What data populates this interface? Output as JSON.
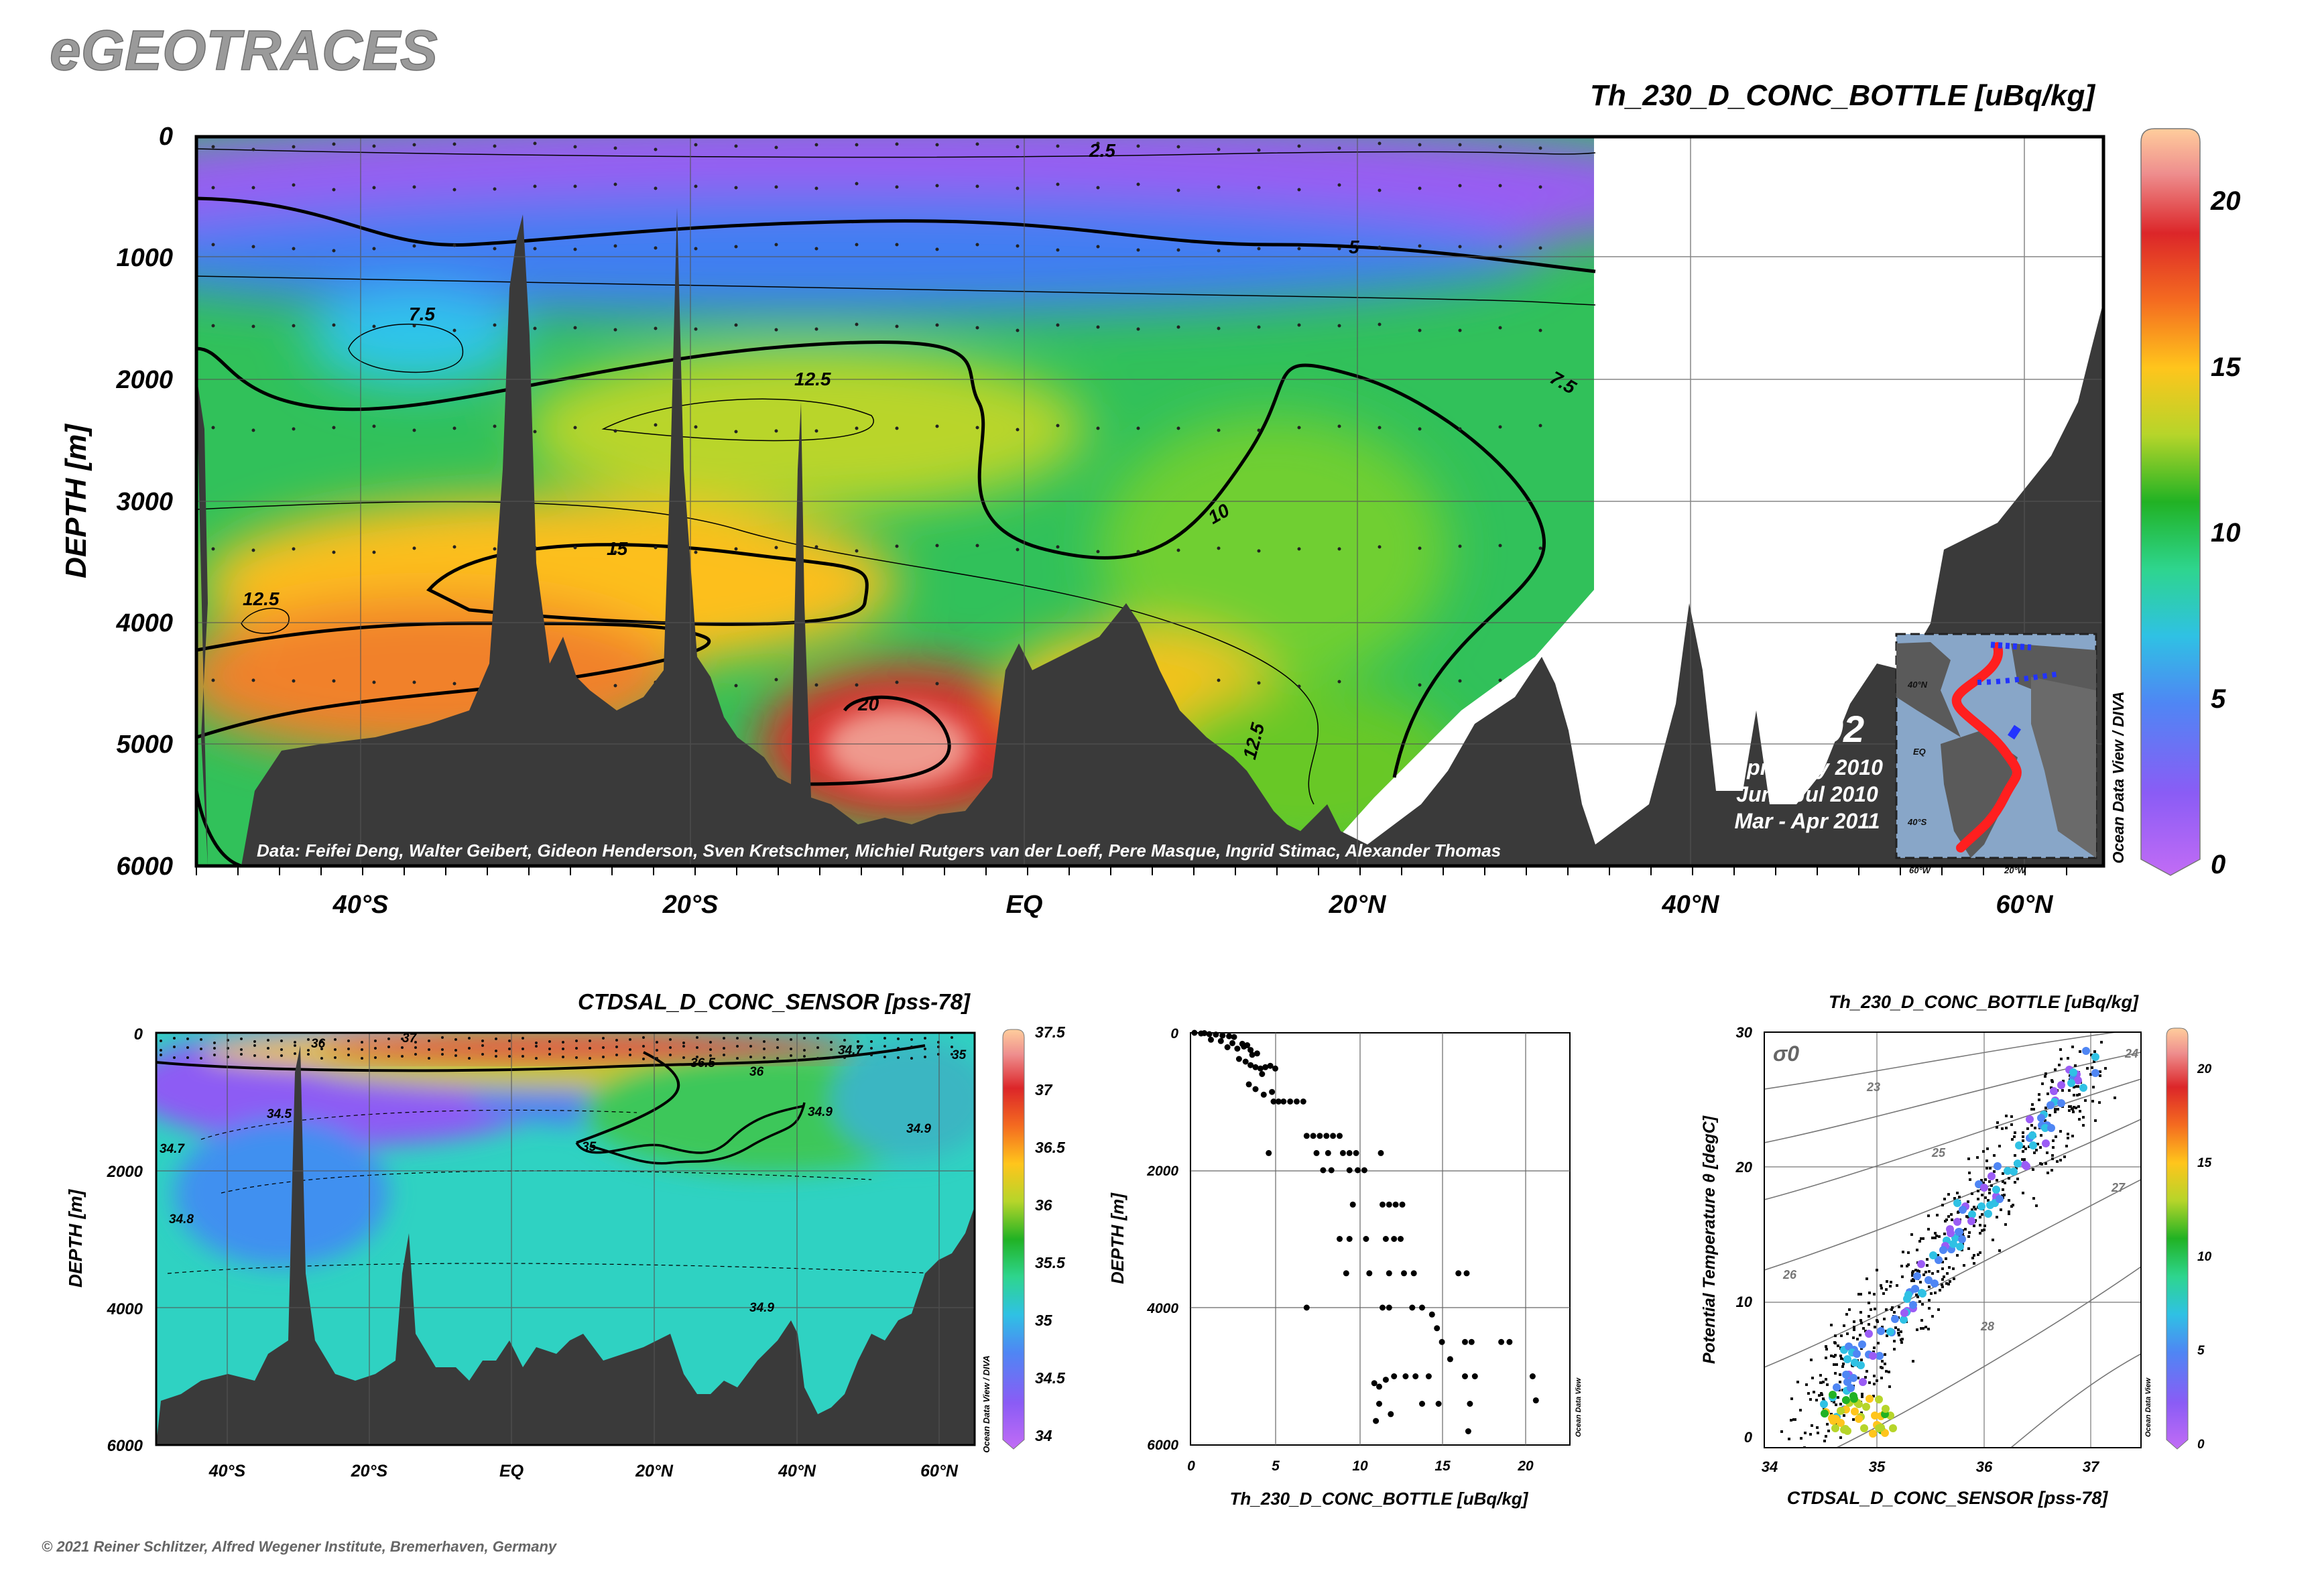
{
  "header": {
    "brand": "eGEOTRACES",
    "copyright": "© 2021 Reiner Schlitzer, Alfred Wegener Institute, Bremerhaven, Germany"
  },
  "main_section": {
    "title": "Th_230_D_CONC_BOTTLE [uBq/kg]",
    "ylabel": "DEPTH [m]",
    "y_ticks": [
      "0",
      "1000",
      "2000",
      "3000",
      "4000",
      "5000",
      "6000"
    ],
    "x_ticks": [
      "40°S",
      "20°S",
      "EQ",
      "20°N",
      "40°N",
      "60°N"
    ],
    "colorbar_ticks": [
      "0",
      "5",
      "10",
      "15",
      "20"
    ],
    "contour_labels": [
      "2.5",
      "5",
      "7.5",
      "12.5",
      "7.5",
      "10",
      "15",
      "12.5",
      "20",
      "12.5"
    ],
    "credit": "Data: Feifei Deng, Walter Geibert, Gideon Henderson, Sven Kretschmer, Michiel Rutgers van der Loeff, Pere Masque, Ingrid Stimac, Alexander Thomas",
    "cruise_id": "GA02",
    "cruise_dates": [
      "Apr - May 2010",
      "Jun - Jul 2010",
      "Mar - Apr 2011"
    ],
    "odv_credit": "Ocean Data View / DIVA",
    "inset_labels": [
      "40°N",
      "EQ",
      "40°S",
      "60°W",
      "20°W"
    ]
  },
  "salinity_section": {
    "title": "CTDSAL_D_CONC_SENSOR [pss-78]",
    "ylabel": "DEPTH [m]",
    "y_ticks": [
      "0",
      "2000",
      "4000",
      "6000"
    ],
    "x_ticks": [
      "40°S",
      "20°S",
      "EQ",
      "20°N",
      "40°N",
      "60°N"
    ],
    "colorbar_ticks": [
      "37.5",
      "37",
      "36.5",
      "36",
      "35.5",
      "35",
      "34.5",
      "34"
    ],
    "contour_labels": [
      "34.5",
      "35",
      "36",
      "37",
      "36.5",
      "36",
      "34.9",
      "34.7",
      "34.8",
      "34.9",
      "34.9",
      "34.7",
      "35"
    ],
    "odv_credit": "Ocean Data View / DIVA"
  },
  "profile_plot": {
    "xlabel": "Th_230_D_CONC_BOTTLE [uBq/kg]",
    "ylabel": "DEPTH [m]",
    "x_ticks": [
      "0",
      "5",
      "10",
      "15",
      "20"
    ],
    "y_ticks": [
      "0",
      "2000",
      "4000",
      "6000"
    ],
    "odv_credit": "Ocean Data View"
  },
  "ts_plot": {
    "title": "Th_230_D_CONC_BOTTLE [uBq/kg]",
    "xlabel": "CTDSAL_D_CONC_SENSOR [pss-78]",
    "ylabel": "Potential Temperature θ [degC]",
    "x_ticks": [
      "34",
      "35",
      "36",
      "37"
    ],
    "y_ticks": [
      "0",
      "10",
      "20",
      "30"
    ],
    "sigma_label": "σ0",
    "isopycnal_labels": [
      "23",
      "24",
      "25",
      "26",
      "27",
      "28"
    ],
    "colorbar_ticks": [
      "20",
      "15",
      "10",
      "5",
      "0"
    ],
    "odv_credit": "Ocean Data View"
  },
  "chart_data": [
    {
      "type": "heatmap",
      "name": "main_section",
      "title": "Th_230_D_CONC_BOTTLE [uBq/kg]",
      "xlabel": "",
      "ylabel": "DEPTH [m]",
      "xlim": [
        -50,
        65
      ],
      "ylim": [
        6000,
        0
      ],
      "colorbar_range": [
        0,
        22
      ],
      "contour_levels": [
        2.5,
        5,
        7.5,
        10,
        12.5,
        15,
        20
      ],
      "contour_heavy": [
        5,
        10,
        15,
        20
      ],
      "data_extent_lat": 34
    },
    {
      "type": "heatmap",
      "name": "salinity_section",
      "title": "CTDSAL_D_CONC_SENSOR [pss-78]",
      "ylabel": "DEPTH [m]",
      "xlim": [
        -50,
        65
      ],
      "ylim": [
        6000,
        0
      ],
      "colorbar_range": [
        34,
        37.5
      ]
    },
    {
      "type": "scatter",
      "name": "profile_plot",
      "xlabel": "Th_230_D_CONC_BOTTLE [uBq/kg]",
      "ylabel": "DEPTH [m]",
      "xlim": [
        0,
        23
      ],
      "ylim": [
        6000,
        0
      ],
      "points": [
        [
          0.2,
          0
        ],
        [
          0.6,
          10
        ],
        [
          1.1,
          20
        ],
        [
          1.5,
          25
        ],
        [
          0.8,
          5
        ],
        [
          1.9,
          40
        ],
        [
          2.3,
          50
        ],
        [
          2.6,
          60
        ],
        [
          1.2,
          100
        ],
        [
          1.8,
          120
        ],
        [
          2.5,
          150
        ],
        [
          3.1,
          160
        ],
        [
          3.4,
          180
        ],
        [
          2.2,
          210
        ],
        [
          2.8,
          230
        ],
        [
          3.2,
          200
        ],
        [
          3.6,
          250
        ],
        [
          4.0,
          300
        ],
        [
          3.7,
          320
        ],
        [
          2.9,
          380
        ],
        [
          3.3,
          420
        ],
        [
          3.6,
          470
        ],
        [
          3.9,
          500
        ],
        [
          4.2,
          520
        ],
        [
          4.5,
          500
        ],
        [
          4.8,
          480
        ],
        [
          5.1,
          520
        ],
        [
          4.3,
          600
        ],
        [
          3.5,
          750
        ],
        [
          3.9,
          820
        ],
        [
          4.4,
          900
        ],
        [
          4.9,
          860
        ],
        [
          5.3,
          1000
        ],
        [
          5.6,
          1000
        ],
        [
          6.0,
          1000
        ],
        [
          6.4,
          1000
        ],
        [
          6.8,
          1000
        ],
        [
          5.0,
          1000
        ],
        [
          4.7,
          1750
        ],
        [
          7.0,
          1500
        ],
        [
          7.4,
          1500
        ],
        [
          7.8,
          1500
        ],
        [
          8.2,
          1500
        ],
        [
          8.6,
          1500
        ],
        [
          9.0,
          1500
        ],
        [
          7.6,
          1750
        ],
        [
          8.3,
          1750
        ],
        [
          9.2,
          1750
        ],
        [
          9.6,
          1750
        ],
        [
          10.0,
          1750
        ],
        [
          11.5,
          1750
        ],
        [
          8.0,
          2000
        ],
        [
          8.5,
          2000
        ],
        [
          9.6,
          2000
        ],
        [
          10.1,
          2000
        ],
        [
          10.5,
          2000
        ],
        [
          9.8,
          2500
        ],
        [
          11.6,
          2500
        ],
        [
          12.0,
          2500
        ],
        [
          12.4,
          2500
        ],
        [
          12.8,
          2500
        ],
        [
          9.0,
          3000
        ],
        [
          9.6,
          3000
        ],
        [
          10.6,
          3000
        ],
        [
          11.8,
          3000
        ],
        [
          12.3,
          3000
        ],
        [
          12.7,
          3000
        ],
        [
          9.4,
          3500
        ],
        [
          10.8,
          3500
        ],
        [
          12.0,
          3500
        ],
        [
          12.9,
          3500
        ],
        [
          13.5,
          3500
        ],
        [
          16.2,
          3500
        ],
        [
          16.7,
          3500
        ],
        [
          7.0,
          4000
        ],
        [
          11.6,
          4000
        ],
        [
          12.0,
          4000
        ],
        [
          13.4,
          4000
        ],
        [
          14.0,
          4000
        ],
        [
          14.6,
          4100
        ],
        [
          14.9,
          4300
        ],
        [
          15.2,
          4500
        ],
        [
          16.6,
          4500
        ],
        [
          17.0,
          4500
        ],
        [
          18.8,
          4500
        ],
        [
          19.3,
          4500
        ],
        [
          15.7,
          4750
        ],
        [
          11.1,
          5100
        ],
        [
          11.4,
          5150
        ],
        [
          11.8,
          5050
        ],
        [
          12.3,
          5000
        ],
        [
          13.0,
          5000
        ],
        [
          13.6,
          5000
        ],
        [
          14.4,
          5000
        ],
        [
          16.6,
          5000
        ],
        [
          17.2,
          5000
        ],
        [
          20.7,
          5000
        ],
        [
          11.4,
          5400
        ],
        [
          11.2,
          5650
        ],
        [
          12.1,
          5550
        ],
        [
          14.0,
          5400
        ],
        [
          15.0,
          5400
        ],
        [
          16.9,
          5400
        ],
        [
          20.9,
          5350
        ],
        [
          16.8,
          5800
        ]
      ]
    },
    {
      "type": "scatter",
      "name": "ts_plot",
      "title": "Th_230_D_CONC_BOTTLE [uBq/kg]",
      "xlabel": "CTDSAL_D_CONC_SENSOR [pss-78]",
      "ylabel": "Potential Temperature θ [degC]",
      "xlim": [
        33.95,
        37.5
      ],
      "ylim": [
        -0.5,
        30
      ],
      "colorbar_range": [
        0,
        22
      ],
      "isopycnals": [
        23,
        24,
        25,
        26,
        27,
        28
      ]
    }
  ],
  "colors": {
    "bathymetry": "#3b3b3b",
    "background": "#ffffff",
    "contour": "#000000",
    "salinity_dots": "#000000"
  }
}
